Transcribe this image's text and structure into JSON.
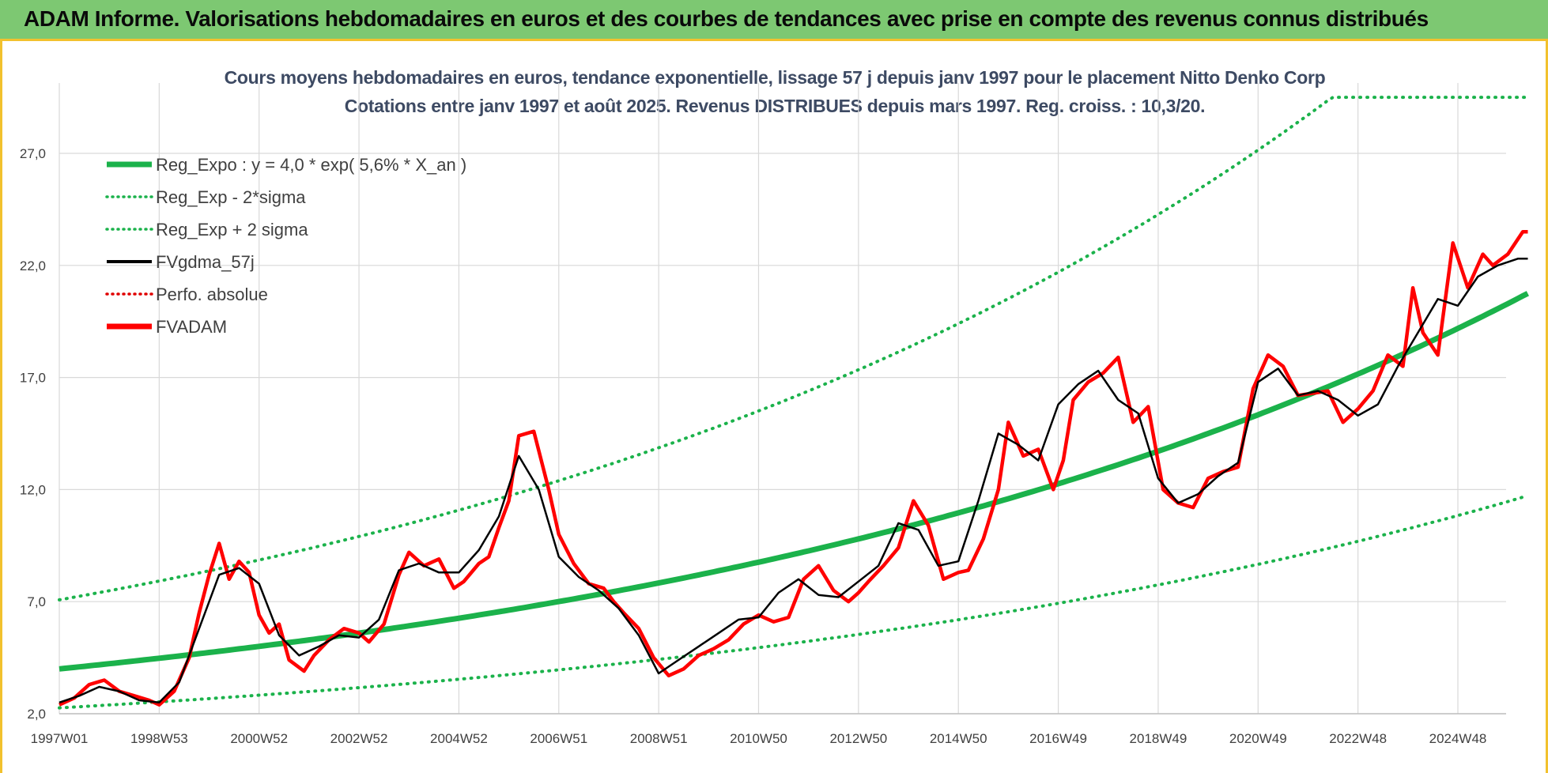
{
  "banner": {
    "title": "ADAM Informe. Valorisations hebdomadaires en euros et des courbes de tendances avec prise en compte des revenus connus distribués"
  },
  "chart_data": {
    "type": "line",
    "title": "Cours moyens hebdomadaires en euros, tendance exponentielle, lissage 57 j depuis janv 1997 pour le placement Nitto Denko Corp",
    "subtitle": "Cotations entre janv 1997 et août 2025. Revenus DISTRIBUES depuis mars 1997. Reg. croiss. : 10,3/20.",
    "x_tick_labels": [
      "1997W01",
      "1998W53",
      "2000W52",
      "2002W52",
      "2004W52",
      "2006W51",
      "2008W51",
      "2010W50",
      "2012W50",
      "2014W50",
      "2016W49",
      "2018W49",
      "2020W49",
      "2022W48",
      "2024W48"
    ],
    "x_tick_years": [
      1997.0,
      1999.0,
      2001.0,
      2003.0,
      2005.0,
      2007.0,
      2009.0,
      2011.0,
      2013.0,
      2015.0,
      2017.0,
      2019.0,
      2021.0,
      2023.0,
      2025.0
    ],
    "x_range": [
      1997.0,
      2026.4
    ],
    "y_ticks": [
      2.0,
      7.0,
      12.0,
      17.0,
      22.0,
      27.0
    ],
    "y_tick_labels": [
      "2,0",
      "7,0",
      "12,0",
      "17,0",
      "22,0",
      "27,0"
    ],
    "ylim": [
      2.0,
      30.0
    ],
    "grid": true,
    "legend_position": "top-left",
    "legend": [
      {
        "label": "Reg_Expo : y = 4,0 * exp( 5,6% *  X_an )",
        "color": "#1bb24b",
        "style": "solid-thick"
      },
      {
        "label": "Reg_Exp - 2*sigma",
        "color": "#1bb24b",
        "style": "dotted"
      },
      {
        "label": "Reg_Exp + 2 sigma",
        "color": "#1bb24b",
        "style": "dotted"
      },
      {
        "label": "FVgdma_57j",
        "color": "#000000",
        "style": "solid"
      },
      {
        "label": "Perfo. absolue",
        "color": "#e00000",
        "style": "dotted"
      },
      {
        "label": "FVADAM",
        "color": "#ff0000",
        "style": "solid-thick"
      }
    ],
    "reg_expo": {
      "a": 4.0,
      "rate": 0.056,
      "x_start": 1997.0,
      "x_end": 2026.4,
      "lower_factor": 0.565,
      "upper_factor": 1.77,
      "cap": 29.5
    },
    "series": [
      {
        "name": "FVADAM",
        "x": [
          1997.0,
          1997.3,
          1997.6,
          1997.9,
          1998.2,
          1998.5,
          1998.8,
          1999.0,
          1999.3,
          1999.6,
          1999.8,
          2000.0,
          2000.2,
          2000.4,
          2000.6,
          2000.8,
          2001.0,
          2001.2,
          2001.4,
          2001.6,
          2001.9,
          2002.1,
          2002.4,
          2002.7,
          2003.0,
          2003.2,
          2003.5,
          2003.8,
          2004.0,
          2004.3,
          2004.6,
          2004.9,
          2005.1,
          2005.4,
          2005.6,
          2005.8,
          2006.0,
          2006.2,
          2006.5,
          2006.8,
          2007.0,
          2007.3,
          2007.6,
          2007.9,
          2008.1,
          2008.3,
          2008.6,
          2008.9,
          2009.2,
          2009.5,
          2009.8,
          2010.1,
          2010.4,
          2010.7,
          2011.0,
          2011.3,
          2011.6,
          2011.9,
          2012.2,
          2012.5,
          2012.8,
          2013.0,
          2013.2,
          2013.5,
          2013.8,
          2014.1,
          2014.4,
          2014.7,
          2015.0,
          2015.2,
          2015.5,
          2015.8,
          2016.0,
          2016.3,
          2016.6,
          2016.9,
          2017.1,
          2017.3,
          2017.6,
          2017.9,
          2018.2,
          2018.5,
          2018.8,
          2019.1,
          2019.4,
          2019.7,
          2020.0,
          2020.3,
          2020.6,
          2020.9,
          2021.2,
          2021.5,
          2021.8,
          2022.1,
          2022.4,
          2022.7,
          2023.0,
          2023.3,
          2023.6,
          2023.9,
          2024.1,
          2024.3,
          2024.6,
          2024.9,
          2025.2,
          2025.5,
          2025.7,
          2026.0,
          2026.3,
          2026.4
        ],
        "y": [
          2.4,
          2.7,
          3.3,
          3.5,
          3.0,
          2.8,
          2.6,
          2.4,
          3.0,
          4.5,
          6.5,
          8.2,
          9.6,
          8.0,
          8.8,
          8.3,
          6.4,
          5.6,
          6.0,
          4.4,
          3.9,
          4.6,
          5.3,
          5.8,
          5.6,
          5.2,
          6.0,
          8.2,
          9.2,
          8.6,
          8.9,
          7.6,
          7.9,
          8.7,
          9.0,
          10.3,
          11.5,
          14.4,
          14.6,
          12.0,
          10.0,
          8.7,
          7.8,
          7.6,
          7.0,
          6.5,
          5.8,
          4.5,
          3.7,
          4.0,
          4.6,
          4.9,
          5.3,
          6.0,
          6.4,
          6.1,
          6.3,
          8.0,
          8.6,
          7.5,
          7.0,
          7.4,
          7.9,
          8.6,
          9.4,
          11.5,
          10.4,
          8.0,
          8.3,
          8.4,
          9.8,
          12.0,
          15.0,
          13.5,
          13.8,
          12.0,
          13.3,
          16.0,
          16.8,
          17.2,
          17.9,
          15.0,
          15.7,
          12.0,
          11.4,
          11.2,
          12.5,
          12.8,
          13.0,
          16.5,
          18.0,
          17.5,
          16.2,
          16.3,
          16.4,
          15.0,
          15.6,
          16.4,
          18.0,
          17.5,
          21.0,
          19.0,
          18.0,
          23.0,
          21.0,
          22.5,
          22.0,
          22.5,
          23.5,
          23.5
        ]
      },
      {
        "name": "FVgdma_57j",
        "x": [
          1997.0,
          1997.4,
          1997.8,
          1998.2,
          1998.6,
          1999.0,
          1999.4,
          1999.8,
          2000.2,
          2000.6,
          2001.0,
          2001.4,
          2001.8,
          2002.2,
          2002.6,
          2003.0,
          2003.4,
          2003.8,
          2004.2,
          2004.6,
          2005.0,
          2005.4,
          2005.8,
          2006.2,
          2006.6,
          2007.0,
          2007.4,
          2007.8,
          2008.2,
          2008.6,
          2009.0,
          2009.4,
          2009.8,
          2010.2,
          2010.6,
          2011.0,
          2011.4,
          2011.8,
          2012.2,
          2012.6,
          2013.0,
          2013.4,
          2013.8,
          2014.2,
          2014.6,
          2015.0,
          2015.4,
          2015.8,
          2016.2,
          2016.6,
          2017.0,
          2017.4,
          2017.8,
          2018.2,
          2018.6,
          2019.0,
          2019.4,
          2019.8,
          2020.2,
          2020.6,
          2021.0,
          2021.4,
          2021.8,
          2022.2,
          2022.6,
          2023.0,
          2023.4,
          2023.8,
          2024.2,
          2024.6,
          2025.0,
          2025.4,
          2025.8,
          2026.2,
          2026.4
        ],
        "y": [
          2.5,
          2.8,
          3.2,
          3.0,
          2.6,
          2.5,
          3.4,
          5.8,
          8.2,
          8.5,
          7.8,
          5.5,
          4.6,
          5.0,
          5.5,
          5.4,
          6.2,
          8.4,
          8.7,
          8.3,
          8.3,
          9.3,
          10.8,
          13.5,
          12.0,
          9.0,
          8.1,
          7.5,
          6.7,
          5.5,
          3.8,
          4.4,
          5.0,
          5.6,
          6.2,
          6.3,
          7.4,
          8.0,
          7.3,
          7.2,
          7.9,
          8.6,
          10.5,
          10.2,
          8.6,
          8.8,
          11.5,
          14.5,
          14.0,
          13.3,
          15.8,
          16.7,
          17.3,
          16.0,
          15.4,
          12.5,
          11.4,
          11.8,
          12.6,
          13.2,
          16.8,
          17.4,
          16.2,
          16.4,
          16.0,
          15.3,
          15.8,
          17.5,
          19.0,
          20.5,
          20.2,
          21.5,
          22.0,
          22.3,
          22.3
        ]
      }
    ]
  }
}
